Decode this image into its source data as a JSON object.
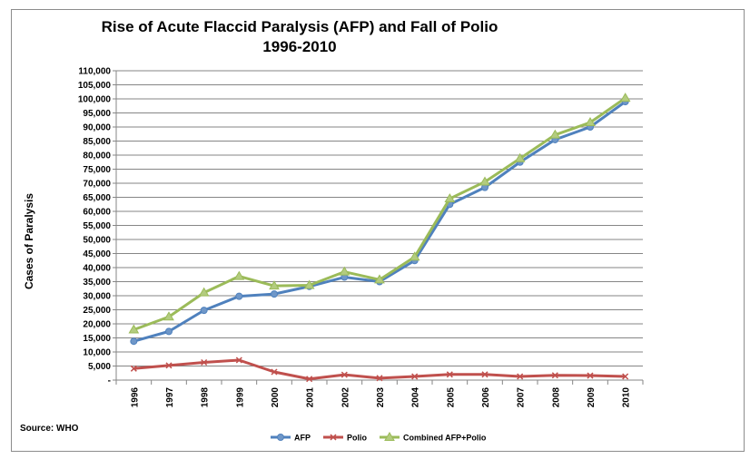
{
  "chart_data": {
    "type": "line",
    "title": "Rise of Acute Flaccid Paralysis (AFP) and Fall of Polio",
    "subtitle": "1996-2010",
    "ylabel": "Cases of Paralysis",
    "xlabel": "",
    "source": "Source: WHO",
    "ylim": [
      0,
      110000
    ],
    "ytick_step": 5000,
    "ytick_labels": [
      "-",
      "5,000",
      "10,000",
      "15,000",
      "20,000",
      "25,000",
      "30,000",
      "35,000",
      "40,000",
      "45,000",
      "50,000",
      "55,000",
      "60,000",
      "65,000",
      "70,000",
      "75,000",
      "80,000",
      "85,000",
      "90,000",
      "95,000",
      "100,000",
      "105,000",
      "110,000"
    ],
    "grid": true,
    "legend_position": "bottom",
    "categories": [
      "1996",
      "1997",
      "1998",
      "1999",
      "2000",
      "2001",
      "2002",
      "2003",
      "2004",
      "2005",
      "2006",
      "2007",
      "2008",
      "2009",
      "2010"
    ],
    "series": [
      {
        "name": "AFP",
        "color": "#4f81bd",
        "marker": "circle",
        "values": [
          13800,
          17300,
          24800,
          29800,
          30600,
          33300,
          36600,
          35000,
          42500,
          62500,
          68500,
          77500,
          85500,
          90000,
          99000
        ]
      },
      {
        "name": "Polio",
        "color": "#c0504d",
        "marker": "x",
        "values": [
          4100,
          5200,
          6300,
          7100,
          2900,
          400,
          1900,
          700,
          1300,
          2000,
          2000,
          1300,
          1700,
          1600,
          1300
        ]
      },
      {
        "name": "Combined AFP+Polio",
        "color": "#9bbb59",
        "marker": "triangle",
        "values": [
          17900,
          22500,
          31100,
          36900,
          33500,
          33700,
          38500,
          35700,
          43800,
          64500,
          70500,
          78800,
          87200,
          91600,
          100300
        ]
      }
    ]
  }
}
